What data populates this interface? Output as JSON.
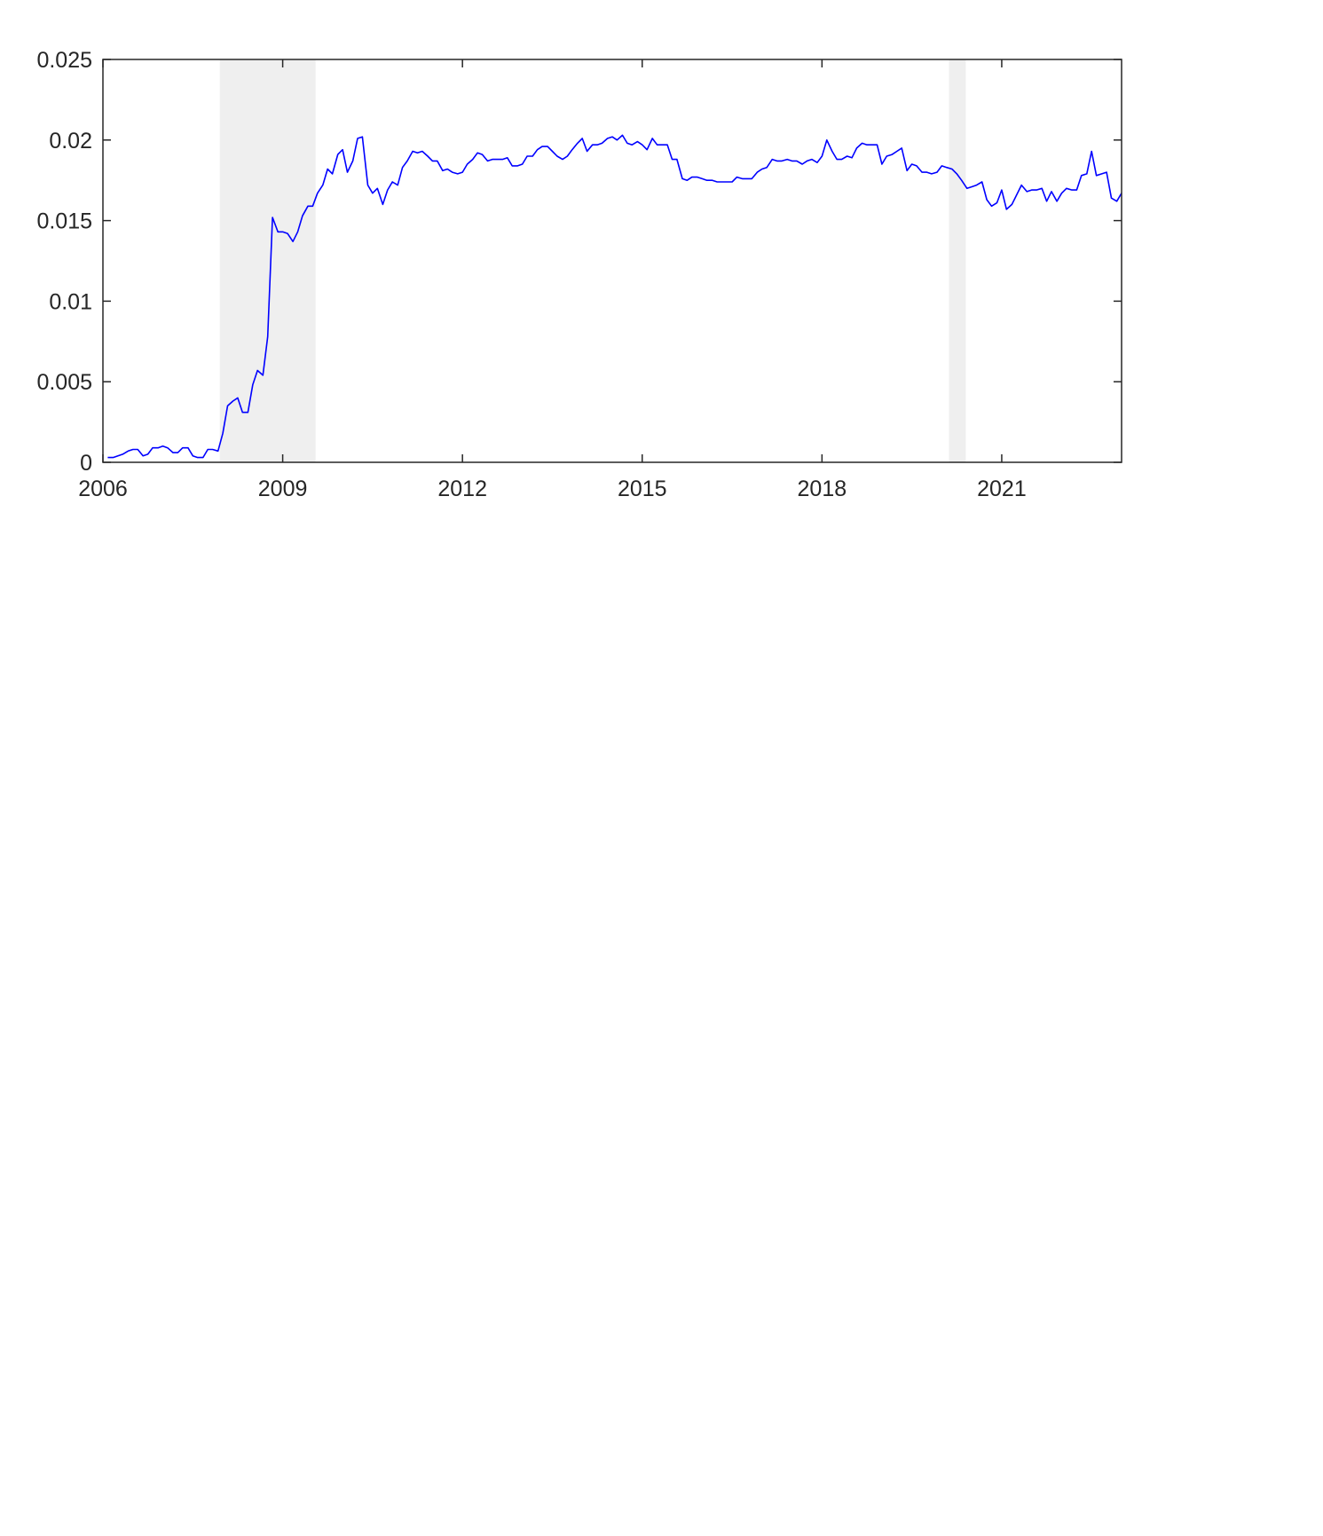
{
  "chart_data": {
    "type": "line",
    "title": "",
    "xlabel": "",
    "ylabel": "",
    "xlim": [
      2006.0,
      2023.0
    ],
    "ylim": [
      0,
      0.025
    ],
    "x_ticks": [
      2006,
      2009,
      2012,
      2015,
      2018,
      2021
    ],
    "x_tick_labels": [
      "2006",
      "2009",
      "2012",
      "2015",
      "2018",
      "2021"
    ],
    "y_ticks": [
      0,
      0.005,
      0.01,
      0.015,
      0.02,
      0.025
    ],
    "y_tick_labels": [
      "0",
      "0.005",
      "0.01",
      "0.015",
      "0.02",
      "0.025"
    ],
    "grid": false,
    "legend": "none",
    "line_color": "#0000ff",
    "shade_color": "#efefef",
    "shaded_periods": [
      {
        "start": 2007.95,
        "end": 2009.55
      },
      {
        "start": 2020.12,
        "end": 2020.4
      }
    ],
    "series": [
      {
        "points": [
          [
            2006.08,
            0.0003
          ],
          [
            2006.17,
            0.0003
          ],
          [
            2006.25,
            0.0004
          ],
          [
            2006.33,
            0.0005
          ],
          [
            2006.42,
            0.0007
          ],
          [
            2006.5,
            0.0008
          ],
          [
            2006.58,
            0.0008
          ],
          [
            2006.67,
            0.0004
          ],
          [
            2006.75,
            0.0005
          ],
          [
            2006.83,
            0.0009
          ],
          [
            2006.92,
            0.0009
          ],
          [
            2007.0,
            0.001
          ],
          [
            2007.08,
            0.0009
          ],
          [
            2007.17,
            0.0006
          ],
          [
            2007.25,
            0.0006
          ],
          [
            2007.33,
            0.0009
          ],
          [
            2007.42,
            0.0009
          ],
          [
            2007.5,
            0.0004
          ],
          [
            2007.58,
            0.0003
          ],
          [
            2007.67,
            0.0003
          ],
          [
            2007.75,
            0.0008
          ],
          [
            2007.83,
            0.0008
          ],
          [
            2007.92,
            0.0007
          ],
          [
            2008.0,
            0.0018
          ],
          [
            2008.08,
            0.0035
          ],
          [
            2008.17,
            0.0038
          ],
          [
            2008.25,
            0.004
          ],
          [
            2008.33,
            0.0031
          ],
          [
            2008.42,
            0.0031
          ],
          [
            2008.5,
            0.0048
          ],
          [
            2008.58,
            0.0057
          ],
          [
            2008.67,
            0.0054
          ],
          [
            2008.75,
            0.0078
          ],
          [
            2008.83,
            0.0152
          ],
          [
            2008.92,
            0.0143
          ],
          [
            2009.0,
            0.0143
          ],
          [
            2009.08,
            0.0142
          ],
          [
            2009.17,
            0.0137
          ],
          [
            2009.25,
            0.0143
          ],
          [
            2009.33,
            0.0153
          ],
          [
            2009.42,
            0.0159
          ],
          [
            2009.5,
            0.0159
          ],
          [
            2009.58,
            0.0167
          ],
          [
            2009.67,
            0.0172
          ],
          [
            2009.75,
            0.0182
          ],
          [
            2009.83,
            0.0179
          ],
          [
            2009.92,
            0.0191
          ],
          [
            2010.0,
            0.0194
          ],
          [
            2010.08,
            0.018
          ],
          [
            2010.17,
            0.0187
          ],
          [
            2010.25,
            0.0201
          ],
          [
            2010.33,
            0.0202
          ],
          [
            2010.42,
            0.0172
          ],
          [
            2010.5,
            0.0167
          ],
          [
            2010.58,
            0.017
          ],
          [
            2010.67,
            0.016
          ],
          [
            2010.75,
            0.0169
          ],
          [
            2010.83,
            0.0174
          ],
          [
            2010.92,
            0.0172
          ],
          [
            2011.0,
            0.0183
          ],
          [
            2011.08,
            0.0187
          ],
          [
            2011.17,
            0.0193
          ],
          [
            2011.25,
            0.0192
          ],
          [
            2011.33,
            0.0193
          ],
          [
            2011.42,
            0.019
          ],
          [
            2011.5,
            0.0187
          ],
          [
            2011.58,
            0.0187
          ],
          [
            2011.67,
            0.0181
          ],
          [
            2011.75,
            0.0182
          ],
          [
            2011.83,
            0.018
          ],
          [
            2011.92,
            0.0179
          ],
          [
            2012.0,
            0.018
          ],
          [
            2012.08,
            0.0185
          ],
          [
            2012.17,
            0.0188
          ],
          [
            2012.25,
            0.0192
          ],
          [
            2012.33,
            0.0191
          ],
          [
            2012.42,
            0.0187
          ],
          [
            2012.5,
            0.0188
          ],
          [
            2012.58,
            0.0188
          ],
          [
            2012.67,
            0.0188
          ],
          [
            2012.75,
            0.0189
          ],
          [
            2012.83,
            0.0184
          ],
          [
            2012.92,
            0.0184
          ],
          [
            2013.0,
            0.0185
          ],
          [
            2013.08,
            0.019
          ],
          [
            2013.17,
            0.019
          ],
          [
            2013.25,
            0.0194
          ],
          [
            2013.33,
            0.0196
          ],
          [
            2013.42,
            0.0196
          ],
          [
            2013.5,
            0.0193
          ],
          [
            2013.58,
            0.019
          ],
          [
            2013.67,
            0.0188
          ],
          [
            2013.75,
            0.019
          ],
          [
            2013.83,
            0.0194
          ],
          [
            2013.92,
            0.0198
          ],
          [
            2014.0,
            0.0201
          ],
          [
            2014.08,
            0.0193
          ],
          [
            2014.17,
            0.0197
          ],
          [
            2014.25,
            0.0197
          ],
          [
            2014.33,
            0.0198
          ],
          [
            2014.42,
            0.0201
          ],
          [
            2014.5,
            0.0202
          ],
          [
            2014.58,
            0.02
          ],
          [
            2014.67,
            0.0203
          ],
          [
            2014.75,
            0.0198
          ],
          [
            2014.83,
            0.0197
          ],
          [
            2014.92,
            0.0199
          ],
          [
            2015.0,
            0.0197
          ],
          [
            2015.08,
            0.0194
          ],
          [
            2015.17,
            0.0201
          ],
          [
            2015.25,
            0.0197
          ],
          [
            2015.33,
            0.0197
          ],
          [
            2015.42,
            0.0197
          ],
          [
            2015.5,
            0.0188
          ],
          [
            2015.58,
            0.0188
          ],
          [
            2015.67,
            0.0176
          ],
          [
            2015.75,
            0.0175
          ],
          [
            2015.83,
            0.0177
          ],
          [
            2015.92,
            0.0177
          ],
          [
            2016.0,
            0.0176
          ],
          [
            2016.08,
            0.0175
          ],
          [
            2016.17,
            0.0175
          ],
          [
            2016.25,
            0.0174
          ],
          [
            2016.33,
            0.0174
          ],
          [
            2016.42,
            0.0174
          ],
          [
            2016.5,
            0.0174
          ],
          [
            2016.58,
            0.0177
          ],
          [
            2016.67,
            0.0176
          ],
          [
            2016.75,
            0.0176
          ],
          [
            2016.83,
            0.0176
          ],
          [
            2016.92,
            0.018
          ],
          [
            2017.0,
            0.0182
          ],
          [
            2017.08,
            0.0183
          ],
          [
            2017.17,
            0.0188
          ],
          [
            2017.25,
            0.0187
          ],
          [
            2017.33,
            0.0187
          ],
          [
            2017.42,
            0.0188
          ],
          [
            2017.5,
            0.0187
          ],
          [
            2017.58,
            0.0187
          ],
          [
            2017.67,
            0.0185
          ],
          [
            2017.75,
            0.0187
          ],
          [
            2017.83,
            0.0188
          ],
          [
            2017.92,
            0.0186
          ],
          [
            2018.0,
            0.019
          ],
          [
            2018.08,
            0.02
          ],
          [
            2018.17,
            0.0193
          ],
          [
            2018.25,
            0.0188
          ],
          [
            2018.33,
            0.0188
          ],
          [
            2018.42,
            0.019
          ],
          [
            2018.5,
            0.0189
          ],
          [
            2018.58,
            0.0195
          ],
          [
            2018.67,
            0.0198
          ],
          [
            2018.75,
            0.0197
          ],
          [
            2018.83,
            0.0197
          ],
          [
            2018.92,
            0.0197
          ],
          [
            2019.0,
            0.0185
          ],
          [
            2019.08,
            0.019
          ],
          [
            2019.17,
            0.0191
          ],
          [
            2019.25,
            0.0193
          ],
          [
            2019.33,
            0.0195
          ],
          [
            2019.42,
            0.0181
          ],
          [
            2019.5,
            0.0185
          ],
          [
            2019.58,
            0.0184
          ],
          [
            2019.67,
            0.018
          ],
          [
            2019.75,
            0.018
          ],
          [
            2019.83,
            0.0179
          ],
          [
            2019.92,
            0.018
          ],
          [
            2020.0,
            0.0184
          ],
          [
            2020.08,
            0.0183
          ],
          [
            2020.17,
            0.0182
          ],
          [
            2020.25,
            0.0179
          ],
          [
            2020.33,
            0.0175
          ],
          [
            2020.42,
            0.017
          ],
          [
            2020.5,
            0.0171
          ],
          [
            2020.58,
            0.0172
          ],
          [
            2020.67,
            0.0174
          ],
          [
            2020.75,
            0.0163
          ],
          [
            2020.83,
            0.0159
          ],
          [
            2020.92,
            0.0161
          ],
          [
            2021.0,
            0.0169
          ],
          [
            2021.08,
            0.0157
          ],
          [
            2021.17,
            0.016
          ],
          [
            2021.25,
            0.0166
          ],
          [
            2021.33,
            0.0172
          ],
          [
            2021.42,
            0.0168
          ],
          [
            2021.5,
            0.0169
          ],
          [
            2021.58,
            0.0169
          ],
          [
            2021.67,
            0.017
          ],
          [
            2021.75,
            0.0162
          ],
          [
            2021.83,
            0.0168
          ],
          [
            2021.92,
            0.0162
          ],
          [
            2022.0,
            0.0167
          ],
          [
            2022.08,
            0.017
          ],
          [
            2022.17,
            0.0169
          ],
          [
            2022.25,
            0.0169
          ],
          [
            2022.33,
            0.0178
          ],
          [
            2022.42,
            0.0179
          ],
          [
            2022.5,
            0.0193
          ],
          [
            2022.58,
            0.0178
          ],
          [
            2022.67,
            0.0179
          ],
          [
            2022.75,
            0.018
          ],
          [
            2022.83,
            0.0164
          ],
          [
            2022.92,
            0.0162
          ],
          [
            2023.0,
            0.0167
          ]
        ]
      }
    ]
  }
}
